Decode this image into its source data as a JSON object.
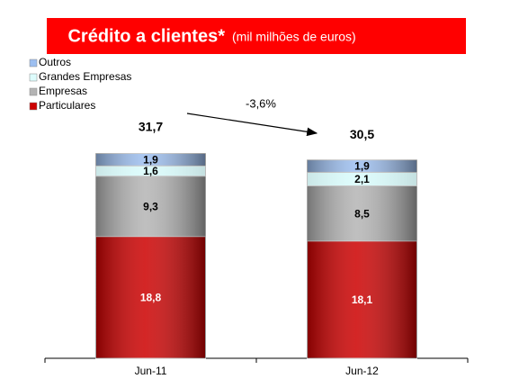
{
  "chart_data": {
    "type": "stacked_bar",
    "title": "Crédito a clientes*",
    "subtitle": "(mil milhões de euros)",
    "annotation": "-3,6%",
    "categories": [
      "Jun-11",
      "Jun-12"
    ],
    "series": [
      {
        "name": "Particulares",
        "color": "#cc0000",
        "label_color": "#ffffff",
        "values": [
          18.8,
          18.1
        ],
        "value_labels": [
          "18,8",
          "18,1"
        ]
      },
      {
        "name": "Empresas",
        "color": "#b4b4b4",
        "label_color": "#000000",
        "values": [
          9.3,
          8.5
        ],
        "value_labels": [
          "9,3",
          "8,5"
        ]
      },
      {
        "name": "Grandes Empresas",
        "color": "#ddfcfc",
        "label_color": "#000000",
        "values": [
          1.6,
          2.1
        ],
        "value_labels": [
          "1,6",
          "2,1"
        ]
      },
      {
        "name": "Outros",
        "color": "#9dbff0",
        "label_color": "#000000",
        "values": [
          1.9,
          1.9
        ],
        "value_labels": [
          "1,9",
          "1,9"
        ]
      }
    ],
    "totals": [
      31.7,
      30.5
    ],
    "total_labels": [
      "31,7",
      "30,5"
    ]
  }
}
